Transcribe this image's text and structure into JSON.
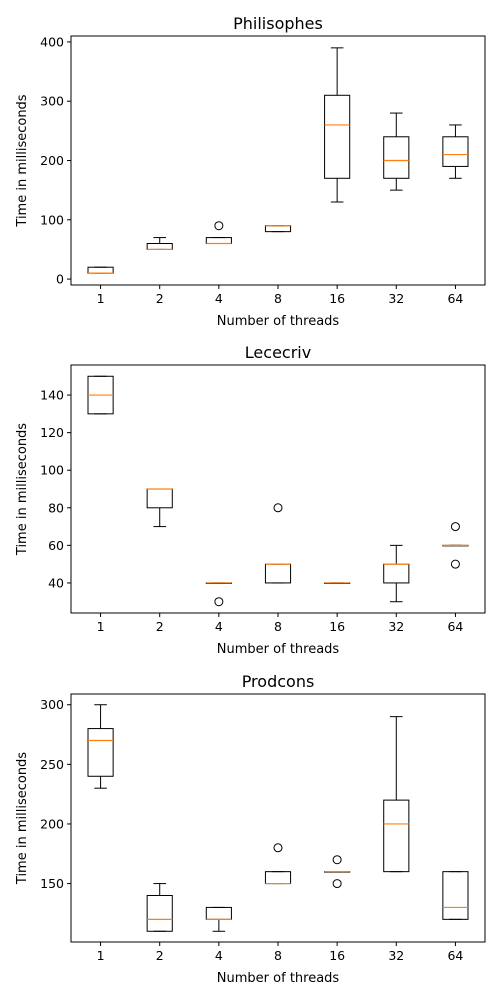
{
  "chart_data": [
    {
      "type": "box",
      "title": "Philisophes",
      "xlabel": "Number of threads",
      "ylabel": "Time in milliseconds",
      "categories": [
        "1",
        "2",
        "4",
        "8",
        "16",
        "32",
        "64"
      ],
      "ylim": [
        -10,
        410
      ],
      "yticks": [
        0,
        100,
        200,
        300,
        400
      ],
      "boxes": [
        {
          "whislo": 10,
          "q1": 10,
          "med": 10,
          "q3": 20,
          "whishi": 20,
          "fliers": []
        },
        {
          "whislo": 50,
          "q1": 50,
          "med": 50,
          "q3": 60,
          "whishi": 70,
          "fliers": []
        },
        {
          "whislo": 60,
          "q1": 60,
          "med": 60,
          "q3": 70,
          "whishi": 70,
          "fliers": [
            90
          ]
        },
        {
          "whislo": 80,
          "q1": 80,
          "med": 90,
          "q3": 90,
          "whishi": 90,
          "fliers": []
        },
        {
          "whislo": 130,
          "q1": 170,
          "med": 260,
          "q3": 310,
          "whishi": 390,
          "fliers": []
        },
        {
          "whislo": 150,
          "q1": 170,
          "med": 200,
          "q3": 240,
          "whishi": 280,
          "fliers": []
        },
        {
          "whislo": 170,
          "q1": 190,
          "med": 210,
          "q3": 240,
          "whishi": 260,
          "fliers": []
        }
      ]
    },
    {
      "type": "box",
      "title": "Lececriv",
      "xlabel": "Number of threads",
      "ylabel": "Time in milliseconds",
      "categories": [
        "1",
        "2",
        "4",
        "8",
        "16",
        "32",
        "64"
      ],
      "ylim": [
        24,
        156
      ],
      "yticks": [
        40,
        60,
        80,
        100,
        120,
        140
      ],
      "boxes": [
        {
          "whislo": 130,
          "q1": 130,
          "med": 140,
          "q3": 150,
          "whishi": 150,
          "fliers": []
        },
        {
          "whislo": 70,
          "q1": 80,
          "med": 90,
          "q3": 90,
          "whishi": 90,
          "fliers": []
        },
        {
          "whislo": 40,
          "q1": 40,
          "med": 40,
          "q3": 40,
          "whishi": 40,
          "fliers": [
            30
          ]
        },
        {
          "whislo": 40,
          "q1": 40,
          "med": 50,
          "q3": 50,
          "whishi": 50,
          "fliers": [
            80
          ]
        },
        {
          "whislo": 40,
          "q1": 40,
          "med": 40,
          "q3": 40,
          "whishi": 40,
          "fliers": []
        },
        {
          "whislo": 30,
          "q1": 40,
          "med": 50,
          "q3": 50,
          "whishi": 60,
          "fliers": []
        },
        {
          "whislo": 60,
          "q1": 60,
          "med": 60,
          "q3": 60,
          "whishi": 60,
          "fliers": [
            70,
            50
          ]
        }
      ]
    },
    {
      "type": "box",
      "title": "Prodcons",
      "xlabel": "Number of threads",
      "ylabel": "Time in milliseconds",
      "categories": [
        "1",
        "2",
        "4",
        "8",
        "16",
        "32",
        "64"
      ],
      "ylim": [
        101,
        309
      ],
      "yticks": [
        150,
        200,
        250,
        300
      ],
      "boxes": [
        {
          "whislo": 230,
          "q1": 240,
          "med": 270,
          "q3": 280,
          "whishi": 300,
          "fliers": []
        },
        {
          "whislo": 110,
          "q1": 110,
          "med": 120,
          "q3": 140,
          "whishi": 150,
          "fliers": []
        },
        {
          "whislo": 110,
          "q1": 120,
          "med": 120,
          "q3": 130,
          "whishi": 130,
          "fliers": []
        },
        {
          "whislo": 150,
          "q1": 150,
          "med": 150,
          "q3": 160,
          "whishi": 160,
          "fliers": [
            180
          ]
        },
        {
          "whislo": 160,
          "q1": 160,
          "med": 160,
          "q3": 160,
          "whishi": 160,
          "fliers": [
            170,
            150
          ]
        },
        {
          "whislo": 160,
          "q1": 160,
          "med": 200,
          "q3": 220,
          "whishi": 290,
          "fliers": []
        },
        {
          "whislo": 120,
          "q1": 120,
          "med": 130,
          "q3": 160,
          "whishi": 160,
          "fliers": []
        }
      ]
    }
  ],
  "colors": {
    "box": "#000000",
    "median": "#ff7f0e",
    "flier": "#000000"
  }
}
